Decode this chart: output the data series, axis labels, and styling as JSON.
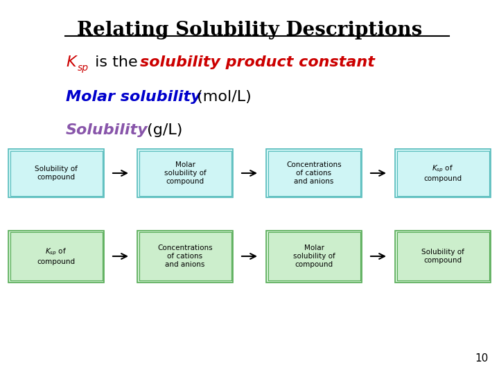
{
  "title": "Relating Solubility Descriptions",
  "bg_color": "#ffffff",
  "title_color": "#000000",
  "title_fontsize": 20,
  "ksp_color": "#cc0000",
  "red_italic_color": "#cc0000",
  "blue_color": "#0000cc",
  "purple_color": "#8855aa",
  "black_color": "#000000",
  "row1_boxes": [
    "Solubility of\ncompound",
    "Molar\nsolubility of\ncompound",
    "Concentrations\nof cations\nand anions",
    "$K_{sp}$ of\ncompound"
  ],
  "row2_boxes": [
    "$K_{sp}$ of\ncompound",
    "Concentrations\nof cations\nand anions",
    "Molar\nsolubility of\ncompound",
    "Solubility of\ncompound"
  ],
  "row1_box_facecolor": "#cff5f5",
  "row1_box_edgecolor": "#55bbbb",
  "row2_box_facecolor": "#cceecc",
  "row2_box_edgecolor": "#55aa55",
  "page_number": "10"
}
